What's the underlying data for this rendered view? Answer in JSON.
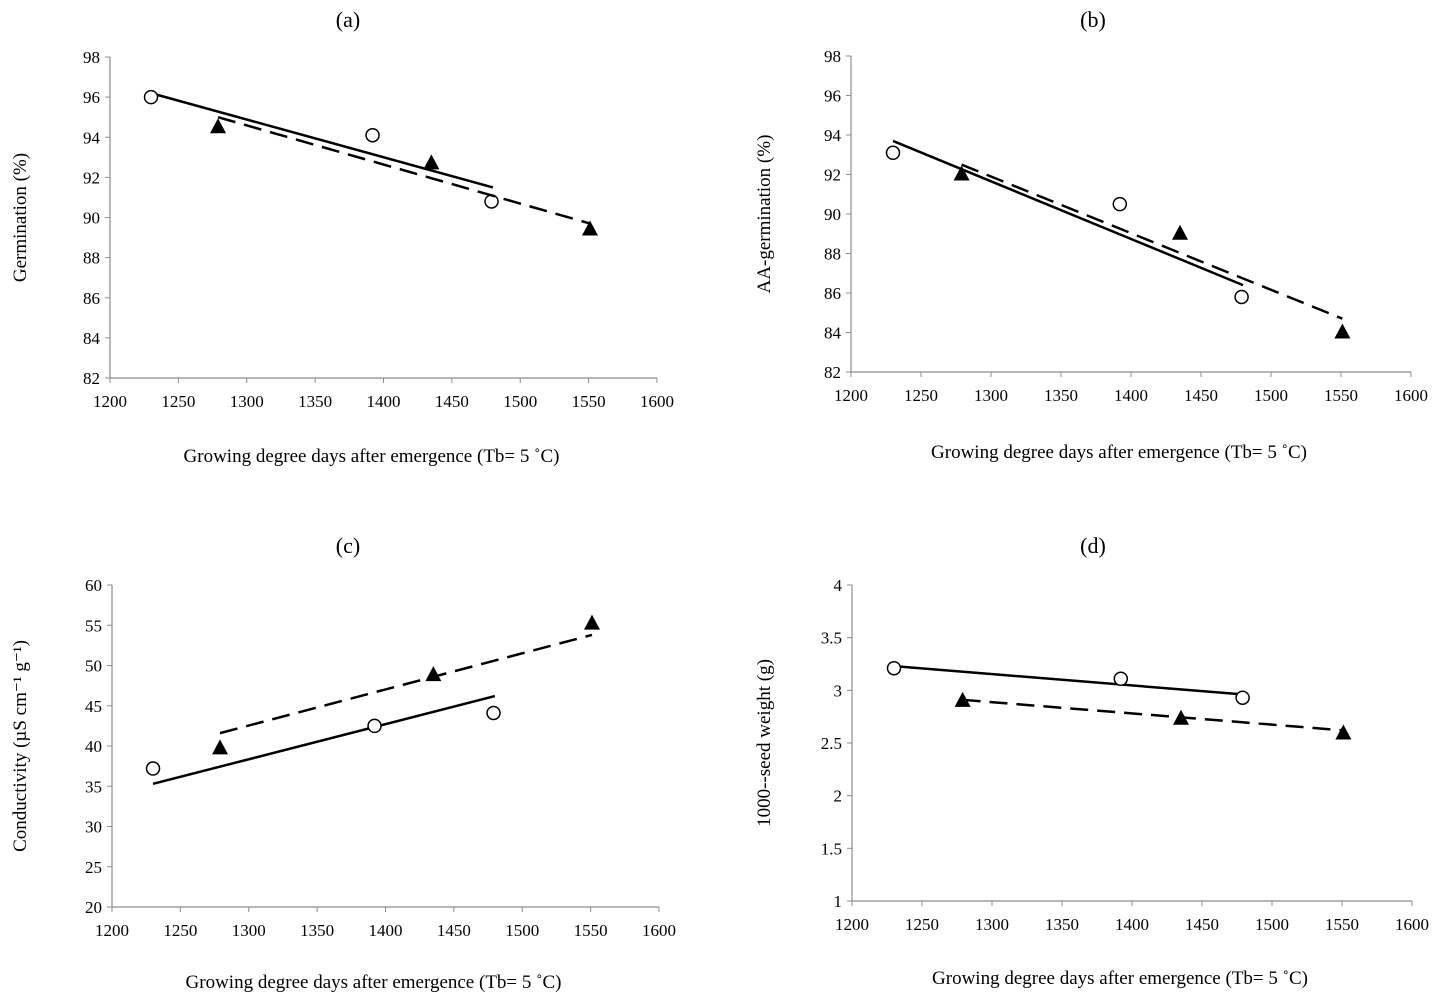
{
  "chart_data": [
    {
      "type": "scatter",
      "panel_label": "(a)",
      "xlabel": "Growing degree days after emergence (Tb= 5 ˚C)",
      "ylabel": "Germination (%)",
      "xlim": [
        1200,
        1600
      ],
      "ylim": [
        82,
        98
      ],
      "xticks": [
        1200,
        1250,
        1300,
        1350,
        1400,
        1450,
        1500,
        1550,
        1600
      ],
      "yticks": [
        82,
        84,
        86,
        88,
        90,
        92,
        94,
        96,
        98
      ],
      "series": [
        {
          "marker": "open-circle",
          "line_style": "solid",
          "x": [
            1230,
            1392,
            1479
          ],
          "y": [
            96.0,
            94.1,
            90.8
          ],
          "fit": {
            "x": [
              1230,
              1480
            ],
            "y": [
              96.2,
              91.5
            ]
          }
        },
        {
          "marker": "filled-triangle",
          "line_style": "dashed",
          "x": [
            1279,
            1435,
            1551
          ],
          "y": [
            94.5,
            92.7,
            89.4
          ],
          "fit": {
            "x": [
              1279,
              1551
            ],
            "y": [
              95.0,
              89.7
            ]
          }
        }
      ]
    },
    {
      "type": "scatter",
      "panel_label": "(b)",
      "xlabel": "Growing degree days after emergence (Tb= 5 ˚C)",
      "ylabel": "AA-germination (%)",
      "xlim": [
        1200,
        1600
      ],
      "ylim": [
        82,
        98
      ],
      "xticks": [
        1200,
        1250,
        1300,
        1350,
        1400,
        1450,
        1500,
        1550,
        1600
      ],
      "yticks": [
        82,
        84,
        86,
        88,
        90,
        92,
        94,
        96,
        98
      ],
      "series": [
        {
          "marker": "open-circle",
          "line_style": "solid",
          "x": [
            1230,
            1392,
            1479
          ],
          "y": [
            93.1,
            90.5,
            85.8
          ],
          "fit": {
            "x": [
              1230,
              1480
            ],
            "y": [
              93.7,
              86.4
            ]
          }
        },
        {
          "marker": "filled-triangle",
          "line_style": "dashed",
          "x": [
            1279,
            1435,
            1551
          ],
          "y": [
            92.0,
            89.0,
            84.0
          ],
          "fit": {
            "x": [
              1279,
              1551
            ],
            "y": [
              92.5,
              84.7
            ]
          }
        }
      ]
    },
    {
      "type": "scatter",
      "panel_label": "(c)",
      "xlabel": "Growing degree days  after emergence (Tb= 5 ˚C)",
      "ylabel": "Conductivity (µS cm⁻¹ g⁻¹)",
      "xlim": [
        1200,
        1600
      ],
      "ylim": [
        20,
        60
      ],
      "xticks": [
        1200,
        1250,
        1300,
        1350,
        1400,
        1450,
        1500,
        1550,
        1600
      ],
      "yticks": [
        20,
        25,
        30,
        35,
        40,
        45,
        50,
        55,
        60
      ],
      "series": [
        {
          "marker": "open-circle",
          "line_style": "solid",
          "x": [
            1230,
            1392,
            1479
          ],
          "y": [
            37.2,
            42.5,
            44.1
          ],
          "fit": {
            "x": [
              1230,
              1480
            ],
            "y": [
              35.3,
              46.2
            ]
          }
        },
        {
          "marker": "filled-triangle",
          "line_style": "dashed",
          "x": [
            1279,
            1435,
            1551
          ],
          "y": [
            39.7,
            48.8,
            55.2
          ],
          "fit": {
            "x": [
              1279,
              1551
            ],
            "y": [
              41.6,
              53.8
            ]
          }
        }
      ]
    },
    {
      "type": "scatter",
      "panel_label": "(d)",
      "xlabel": "Growing degree days after emergence (Tb= 5 ˚C)",
      "ylabel": "1000--seed weight (g)",
      "xlim": [
        1200,
        1600
      ],
      "ylim": [
        1,
        4
      ],
      "xticks": [
        1200,
        1250,
        1300,
        1350,
        1400,
        1450,
        1500,
        1550,
        1600
      ],
      "yticks": [
        1,
        1.5,
        2,
        2.5,
        3,
        3.5,
        4
      ],
      "series": [
        {
          "marker": "open-circle",
          "line_style": "solid",
          "x": [
            1230,
            1392,
            1479
          ],
          "y": [
            3.21,
            3.11,
            2.93
          ],
          "fit": {
            "x": [
              1230,
              1480
            ],
            "y": [
              3.23,
              2.96
            ]
          }
        },
        {
          "marker": "filled-triangle",
          "line_style": "dashed",
          "x": [
            1279,
            1435,
            1551
          ],
          "y": [
            2.9,
            2.73,
            2.59
          ],
          "fit": {
            "x": [
              1279,
              1551
            ],
            "y": [
              2.91,
              2.62
            ]
          }
        }
      ]
    }
  ]
}
